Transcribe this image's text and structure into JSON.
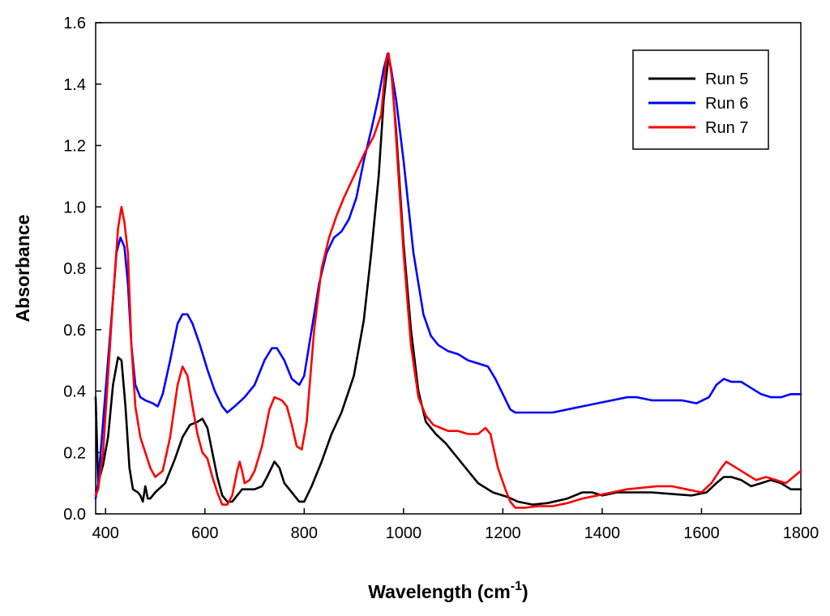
{
  "chart_data": {
    "type": "line",
    "xlabel": "Wavelength (cm",
    "xlabel_superscript": "-1",
    "xlabel_close": ")",
    "ylabel": "Absorbance",
    "xlim": [
      380,
      1800
    ],
    "ylim": [
      0.0,
      1.6
    ],
    "xticks": [
      400,
      600,
      800,
      1000,
      1200,
      1400,
      1600,
      1800
    ],
    "yticks": [
      0.0,
      0.2,
      0.4,
      0.6,
      0.8,
      1.0,
      1.2,
      1.4,
      1.6
    ],
    "ytick_labels": [
      "0.0",
      "0.2",
      "0.4",
      "0.6",
      "0.8",
      "1.0",
      "1.2",
      "1.4",
      "1.6"
    ],
    "legend_position": "top-right",
    "series": [
      {
        "name": "Run 5",
        "color": "#000000",
        "points": [
          [
            380,
            0.38
          ],
          [
            385,
            0.1
          ],
          [
            395,
            0.16
          ],
          [
            405,
            0.25
          ],
          [
            415,
            0.42
          ],
          [
            425,
            0.51
          ],
          [
            432,
            0.5
          ],
          [
            440,
            0.35
          ],
          [
            448,
            0.15
          ],
          [
            455,
            0.08
          ],
          [
            465,
            0.07
          ],
          [
            470,
            0.06
          ],
          [
            475,
            0.04
          ],
          [
            480,
            0.09
          ],
          [
            485,
            0.05
          ],
          [
            490,
            0.05
          ],
          [
            500,
            0.07
          ],
          [
            520,
            0.1
          ],
          [
            540,
            0.18
          ],
          [
            555,
            0.25
          ],
          [
            570,
            0.29
          ],
          [
            585,
            0.3
          ],
          [
            595,
            0.31
          ],
          [
            605,
            0.28
          ],
          [
            615,
            0.2
          ],
          [
            625,
            0.12
          ],
          [
            635,
            0.06
          ],
          [
            645,
            0.04
          ],
          [
            655,
            0.04
          ],
          [
            665,
            0.06
          ],
          [
            675,
            0.08
          ],
          [
            685,
            0.08
          ],
          [
            700,
            0.08
          ],
          [
            715,
            0.09
          ],
          [
            725,
            0.12
          ],
          [
            740,
            0.17
          ],
          [
            750,
            0.15
          ],
          [
            760,
            0.1
          ],
          [
            775,
            0.07
          ],
          [
            790,
            0.04
          ],
          [
            800,
            0.04
          ],
          [
            815,
            0.09
          ],
          [
            835,
            0.17
          ],
          [
            855,
            0.26
          ],
          [
            875,
            0.33
          ],
          [
            900,
            0.45
          ],
          [
            920,
            0.63
          ],
          [
            935,
            0.85
          ],
          [
            950,
            1.1
          ],
          [
            960,
            1.35
          ],
          [
            970,
            1.49
          ],
          [
            975,
            1.45
          ],
          [
            985,
            1.25
          ],
          [
            1000,
            0.88
          ],
          [
            1015,
            0.6
          ],
          [
            1030,
            0.4
          ],
          [
            1045,
            0.3
          ],
          [
            1065,
            0.26
          ],
          [
            1085,
            0.23
          ],
          [
            1100,
            0.2
          ],
          [
            1120,
            0.16
          ],
          [
            1150,
            0.1
          ],
          [
            1180,
            0.07
          ],
          [
            1210,
            0.055
          ],
          [
            1230,
            0.04
          ],
          [
            1260,
            0.03
          ],
          [
            1290,
            0.035
          ],
          [
            1330,
            0.05
          ],
          [
            1360,
            0.07
          ],
          [
            1380,
            0.07
          ],
          [
            1400,
            0.06
          ],
          [
            1430,
            0.07
          ],
          [
            1470,
            0.07
          ],
          [
            1500,
            0.07
          ],
          [
            1540,
            0.065
          ],
          [
            1580,
            0.06
          ],
          [
            1610,
            0.07
          ],
          [
            1630,
            0.1
          ],
          [
            1645,
            0.12
          ],
          [
            1660,
            0.12
          ],
          [
            1680,
            0.11
          ],
          [
            1700,
            0.09
          ],
          [
            1720,
            0.1
          ],
          [
            1740,
            0.11
          ],
          [
            1760,
            0.1
          ],
          [
            1780,
            0.08
          ],
          [
            1800,
            0.08
          ]
        ]
      },
      {
        "name": "Run 6",
        "color": "#0000ff",
        "points": [
          [
            380,
            0.05
          ],
          [
            385,
            0.1
          ],
          [
            395,
            0.3
          ],
          [
            405,
            0.5
          ],
          [
            415,
            0.7
          ],
          [
            422,
            0.85
          ],
          [
            430,
            0.9
          ],
          [
            438,
            0.87
          ],
          [
            445,
            0.75
          ],
          [
            452,
            0.55
          ],
          [
            460,
            0.42
          ],
          [
            470,
            0.38
          ],
          [
            480,
            0.37
          ],
          [
            495,
            0.36
          ],
          [
            505,
            0.35
          ],
          [
            515,
            0.39
          ],
          [
            530,
            0.5
          ],
          [
            545,
            0.62
          ],
          [
            555,
            0.65
          ],
          [
            565,
            0.65
          ],
          [
            575,
            0.62
          ],
          [
            590,
            0.55
          ],
          [
            605,
            0.47
          ],
          [
            620,
            0.4
          ],
          [
            635,
            0.35
          ],
          [
            645,
            0.33
          ],
          [
            660,
            0.35
          ],
          [
            680,
            0.38
          ],
          [
            700,
            0.42
          ],
          [
            720,
            0.5
          ],
          [
            735,
            0.54
          ],
          [
            745,
            0.54
          ],
          [
            760,
            0.5
          ],
          [
            775,
            0.44
          ],
          [
            790,
            0.42
          ],
          [
            800,
            0.45
          ],
          [
            815,
            0.6
          ],
          [
            830,
            0.75
          ],
          [
            845,
            0.85
          ],
          [
            860,
            0.9
          ],
          [
            875,
            0.92
          ],
          [
            890,
            0.96
          ],
          [
            905,
            1.03
          ],
          [
            920,
            1.15
          ],
          [
            935,
            1.25
          ],
          [
            950,
            1.36
          ],
          [
            960,
            1.45
          ],
          [
            968,
            1.5
          ],
          [
            975,
            1.45
          ],
          [
            985,
            1.35
          ],
          [
            1000,
            1.15
          ],
          [
            1020,
            0.85
          ],
          [
            1040,
            0.65
          ],
          [
            1055,
            0.58
          ],
          [
            1070,
            0.55
          ],
          [
            1090,
            0.53
          ],
          [
            1110,
            0.52
          ],
          [
            1130,
            0.5
          ],
          [
            1150,
            0.49
          ],
          [
            1170,
            0.48
          ],
          [
            1185,
            0.44
          ],
          [
            1200,
            0.39
          ],
          [
            1215,
            0.34
          ],
          [
            1225,
            0.33
          ],
          [
            1245,
            0.33
          ],
          [
            1270,
            0.33
          ],
          [
            1300,
            0.33
          ],
          [
            1330,
            0.34
          ],
          [
            1360,
            0.35
          ],
          [
            1390,
            0.36
          ],
          [
            1420,
            0.37
          ],
          [
            1450,
            0.38
          ],
          [
            1470,
            0.38
          ],
          [
            1500,
            0.37
          ],
          [
            1530,
            0.37
          ],
          [
            1560,
            0.37
          ],
          [
            1590,
            0.36
          ],
          [
            1615,
            0.38
          ],
          [
            1630,
            0.42
          ],
          [
            1645,
            0.44
          ],
          [
            1660,
            0.43
          ],
          [
            1680,
            0.43
          ],
          [
            1700,
            0.41
          ],
          [
            1720,
            0.39
          ],
          [
            1740,
            0.38
          ],
          [
            1760,
            0.38
          ],
          [
            1780,
            0.39
          ],
          [
            1800,
            0.39
          ]
        ]
      },
      {
        "name": "Run 7",
        "color": "#ff0000",
        "points": [
          [
            380,
            0.06
          ],
          [
            385,
            0.08
          ],
          [
            395,
            0.2
          ],
          [
            405,
            0.45
          ],
          [
            415,
            0.7
          ],
          [
            425,
            0.93
          ],
          [
            432,
            1.0
          ],
          [
            438,
            0.95
          ],
          [
            445,
            0.85
          ],
          [
            452,
            0.55
          ],
          [
            460,
            0.35
          ],
          [
            470,
            0.25
          ],
          [
            480,
            0.2
          ],
          [
            490,
            0.15
          ],
          [
            500,
            0.12
          ],
          [
            515,
            0.14
          ],
          [
            530,
            0.25
          ],
          [
            545,
            0.42
          ],
          [
            555,
            0.48
          ],
          [
            565,
            0.45
          ],
          [
            575,
            0.35
          ],
          [
            585,
            0.26
          ],
          [
            595,
            0.2
          ],
          [
            605,
            0.18
          ],
          [
            615,
            0.12
          ],
          [
            625,
            0.07
          ],
          [
            635,
            0.03
          ],
          [
            645,
            0.03
          ],
          [
            655,
            0.06
          ],
          [
            665,
            0.14
          ],
          [
            670,
            0.17
          ],
          [
            675,
            0.14
          ],
          [
            680,
            0.1
          ],
          [
            690,
            0.11
          ],
          [
            700,
            0.14
          ],
          [
            715,
            0.22
          ],
          [
            730,
            0.34
          ],
          [
            740,
            0.38
          ],
          [
            755,
            0.37
          ],
          [
            765,
            0.35
          ],
          [
            775,
            0.29
          ],
          [
            785,
            0.22
          ],
          [
            795,
            0.21
          ],
          [
            805,
            0.3
          ],
          [
            820,
            0.6
          ],
          [
            835,
            0.8
          ],
          [
            850,
            0.9
          ],
          [
            865,
            0.97
          ],
          [
            880,
            1.03
          ],
          [
            900,
            1.1
          ],
          [
            920,
            1.17
          ],
          [
            940,
            1.23
          ],
          [
            955,
            1.3
          ],
          [
            965,
            1.48
          ],
          [
            970,
            1.5
          ],
          [
            978,
            1.4
          ],
          [
            990,
            1.1
          ],
          [
            1000,
            0.85
          ],
          [
            1015,
            0.55
          ],
          [
            1030,
            0.38
          ],
          [
            1045,
            0.32
          ],
          [
            1060,
            0.29
          ],
          [
            1075,
            0.28
          ],
          [
            1090,
            0.27
          ],
          [
            1110,
            0.27
          ],
          [
            1130,
            0.26
          ],
          [
            1150,
            0.26
          ],
          [
            1165,
            0.28
          ],
          [
            1175,
            0.26
          ],
          [
            1190,
            0.15
          ],
          [
            1205,
            0.08
          ],
          [
            1215,
            0.04
          ],
          [
            1225,
            0.02
          ],
          [
            1245,
            0.02
          ],
          [
            1270,
            0.025
          ],
          [
            1300,
            0.025
          ],
          [
            1330,
            0.035
          ],
          [
            1360,
            0.05
          ],
          [
            1390,
            0.06
          ],
          [
            1420,
            0.07
          ],
          [
            1450,
            0.08
          ],
          [
            1480,
            0.085
          ],
          [
            1510,
            0.09
          ],
          [
            1540,
            0.09
          ],
          [
            1570,
            0.08
          ],
          [
            1600,
            0.07
          ],
          [
            1620,
            0.1
          ],
          [
            1640,
            0.15
          ],
          [
            1650,
            0.17
          ],
          [
            1670,
            0.15
          ],
          [
            1690,
            0.13
          ],
          [
            1710,
            0.11
          ],
          [
            1730,
            0.12
          ],
          [
            1750,
            0.11
          ],
          [
            1770,
            0.1
          ],
          [
            1785,
            0.12
          ],
          [
            1800,
            0.14
          ]
        ]
      }
    ]
  }
}
